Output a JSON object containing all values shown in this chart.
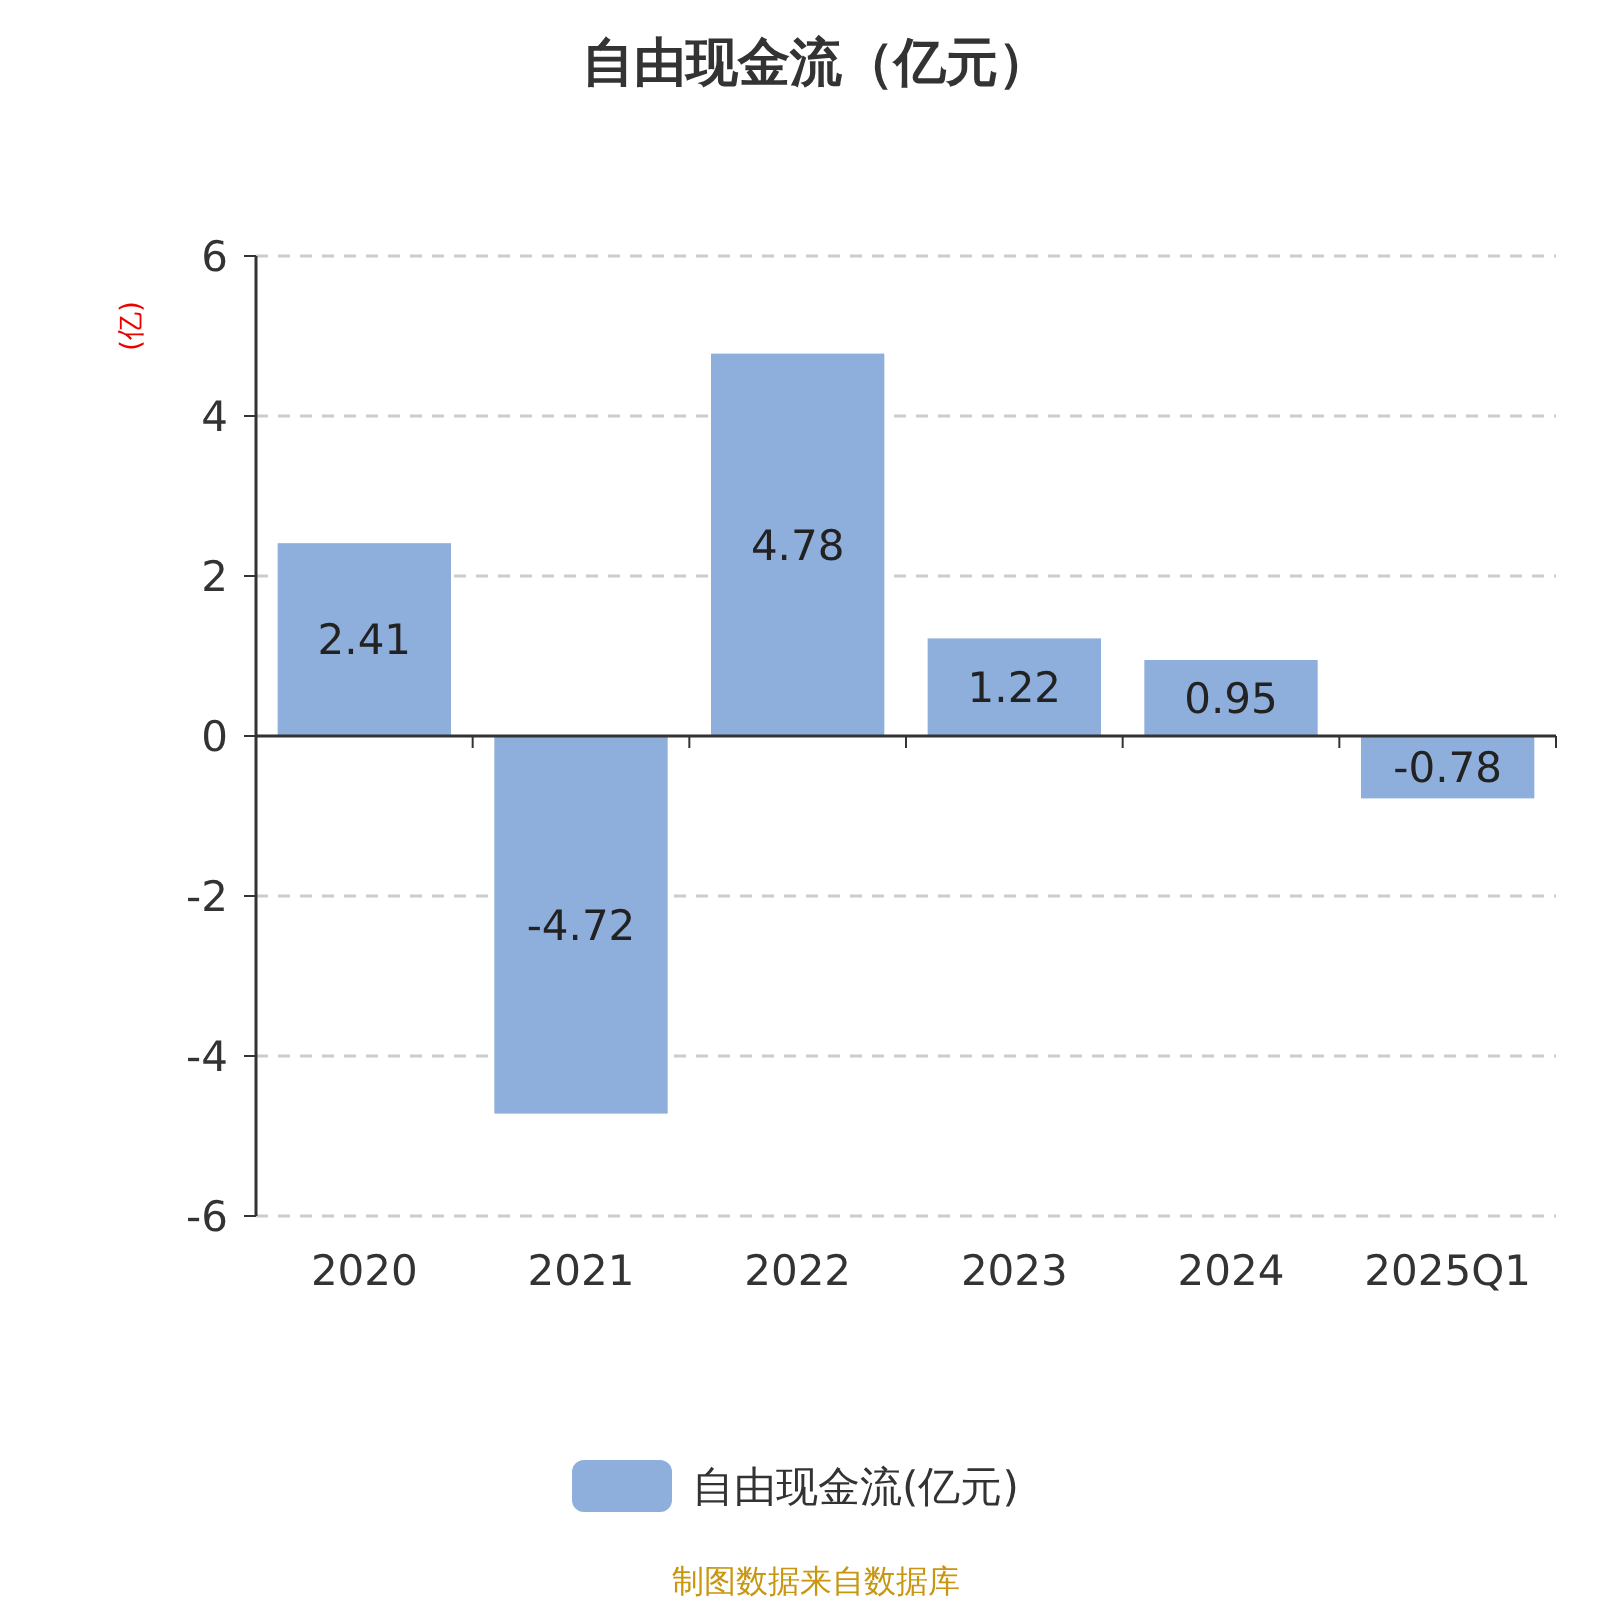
{
  "chart_data": {
    "type": "bar",
    "title": "自由现金流（亿元）",
    "ylabel": "(亿)",
    "categories": [
      "2020",
      "2021",
      "2022",
      "2023",
      "2024",
      "2025Q1"
    ],
    "series": [
      {
        "name": "自由现金流(亿元)",
        "color": "#8eaedb",
        "values": [
          2.41,
          -4.72,
          4.78,
          1.22,
          0.95,
          -0.78
        ]
      }
    ],
    "ylim": [
      -6,
      6
    ],
    "yticks": [
      -6,
      -4,
      -2,
      0,
      2,
      4,
      6
    ],
    "grid": "y",
    "legend": "bottom",
    "data_labels": true,
    "annotations": [
      "制图数据来自数据库"
    ]
  }
}
